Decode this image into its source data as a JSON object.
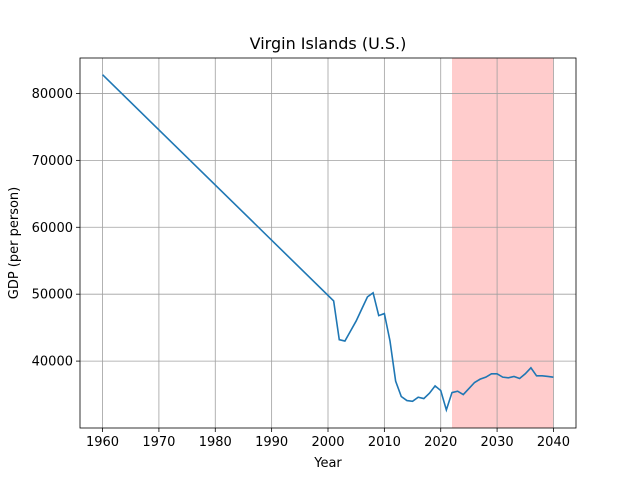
{
  "chart_data": {
    "type": "line",
    "title": "Virgin Islands (U.S.)",
    "xlabel": "Year",
    "ylabel": "GDP (per person)",
    "xlim": [
      1956,
      2044
    ],
    "ylim": [
      30000,
      85300
    ],
    "xticks": [
      1960,
      1970,
      1980,
      1990,
      2000,
      2010,
      2020,
      2030,
      2040
    ],
    "yticks": [
      40000,
      50000,
      60000,
      70000,
      80000
    ],
    "ytick_labels": [
      "40000",
      "50000",
      "60000",
      "70000",
      "80000"
    ],
    "grid": true,
    "line_color": "#1f77b4",
    "shaded_region": {
      "x_start": 2022,
      "x_end": 2040,
      "color": "#ff0000",
      "opacity": 0.2
    },
    "series": [
      {
        "x": [
          1960,
          2001,
          2002,
          2003,
          2004,
          2005,
          2006,
          2007,
          2008,
          2009,
          2010,
          2011,
          2012,
          2013,
          2014,
          2015,
          2016,
          2017,
          2018,
          2019,
          2020,
          2021,
          2022,
          2023,
          2024,
          2025,
          2026,
          2027,
          2028,
          2029,
          2030,
          2031,
          2032,
          2033,
          2034,
          2035,
          2036,
          2037,
          2038,
          2039,
          2040
        ],
        "y": [
          82800,
          49000,
          43200,
          43000,
          44500,
          46000,
          47800,
          49600,
          50200,
          46800,
          47100,
          43000,
          37000,
          34700,
          34100,
          34000,
          34600,
          34400,
          35200,
          36300,
          35600,
          32700,
          35300,
          35500,
          35000,
          35900,
          36800,
          37300,
          37600,
          38100,
          38100,
          37600,
          37500,
          37700,
          37400,
          38100,
          39000,
          37800,
          37800,
          37700,
          37600
        ]
      }
    ]
  }
}
